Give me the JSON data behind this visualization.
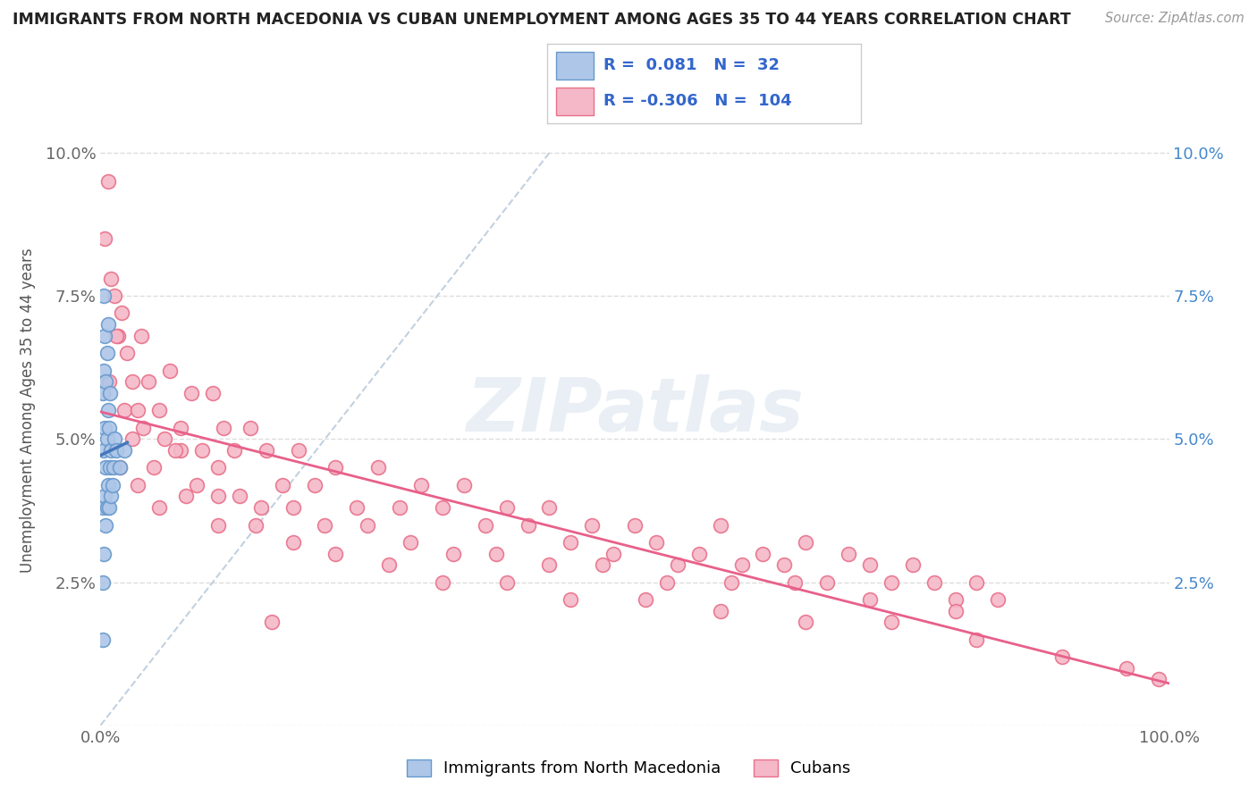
{
  "title": "IMMIGRANTS FROM NORTH MACEDONIA VS CUBAN UNEMPLOYMENT AMONG AGES 35 TO 44 YEARS CORRELATION CHART",
  "source": "Source: ZipAtlas.com",
  "ylabel": "Unemployment Among Ages 35 to 44 years",
  "legend_label1": "Immigrants from North Macedonia",
  "legend_label2": "Cubans",
  "R1": 0.081,
  "N1": 32,
  "R2": -0.306,
  "N2": 104,
  "xlim": [
    0.0,
    1.0
  ],
  "ylim": [
    0.0,
    0.11
  ],
  "yticks": [
    0.0,
    0.025,
    0.05,
    0.075,
    0.1
  ],
  "ytick_labels_left": [
    "",
    "2.5%",
    "5.0%",
    "7.5%",
    "10.0%"
  ],
  "ytick_labels_right": [
    "",
    "2.5%",
    "5.0%",
    "7.5%",
    "10.0%"
  ],
  "xticks": [
    0.0,
    1.0
  ],
  "xtick_labels": [
    "0.0%",
    "100.0%"
  ],
  "color_blue_face": "#aec6e8",
  "color_blue_edge": "#6699cc",
  "color_pink_face": "#f4b8c8",
  "color_pink_edge": "#e8708a",
  "trend_blue_color": "#4477bb",
  "trend_pink_color": "#e8608a",
  "diag_line_color": "#bbccdd",
  "watermark_text": "ZIPatlas",
  "blue_scatter_x": [
    0.002,
    0.002,
    0.002,
    0.002,
    0.003,
    0.003,
    0.003,
    0.003,
    0.004,
    0.004,
    0.004,
    0.005,
    0.005,
    0.005,
    0.006,
    0.006,
    0.006,
    0.007,
    0.007,
    0.007,
    0.008,
    0.008,
    0.009,
    0.009,
    0.01,
    0.01,
    0.011,
    0.012,
    0.013,
    0.015,
    0.018,
    0.022
  ],
  "blue_scatter_y": [
    0.015,
    0.025,
    0.038,
    0.058,
    0.03,
    0.048,
    0.062,
    0.075,
    0.04,
    0.052,
    0.068,
    0.035,
    0.045,
    0.06,
    0.038,
    0.05,
    0.065,
    0.042,
    0.055,
    0.07,
    0.038,
    0.052,
    0.045,
    0.058,
    0.04,
    0.048,
    0.042,
    0.045,
    0.05,
    0.048,
    0.045,
    0.048
  ],
  "pink_scatter_x": [
    0.004,
    0.007,
    0.01,
    0.013,
    0.016,
    0.02,
    0.025,
    0.03,
    0.038,
    0.045,
    0.055,
    0.065,
    0.075,
    0.085,
    0.095,
    0.105,
    0.115,
    0.125,
    0.14,
    0.155,
    0.17,
    0.185,
    0.2,
    0.22,
    0.24,
    0.26,
    0.28,
    0.3,
    0.32,
    0.34,
    0.36,
    0.38,
    0.4,
    0.42,
    0.44,
    0.46,
    0.48,
    0.5,
    0.52,
    0.54,
    0.56,
    0.58,
    0.6,
    0.62,
    0.64,
    0.66,
    0.68,
    0.7,
    0.72,
    0.74,
    0.76,
    0.78,
    0.8,
    0.82,
    0.84,
    0.008,
    0.015,
    0.022,
    0.03,
    0.04,
    0.05,
    0.06,
    0.075,
    0.09,
    0.11,
    0.13,
    0.15,
    0.18,
    0.21,
    0.25,
    0.29,
    0.33,
    0.37,
    0.42,
    0.47,
    0.53,
    0.59,
    0.65,
    0.72,
    0.8,
    0.018,
    0.035,
    0.055,
    0.08,
    0.11,
    0.145,
    0.18,
    0.22,
    0.27,
    0.32,
    0.38,
    0.44,
    0.51,
    0.58,
    0.66,
    0.74,
    0.82,
    0.9,
    0.96,
    0.99,
    0.035,
    0.07,
    0.11,
    0.16
  ],
  "pink_scatter_y": [
    0.085,
    0.095,
    0.078,
    0.075,
    0.068,
    0.072,
    0.065,
    0.06,
    0.068,
    0.06,
    0.055,
    0.062,
    0.052,
    0.058,
    0.048,
    0.058,
    0.052,
    0.048,
    0.052,
    0.048,
    0.042,
    0.048,
    0.042,
    0.045,
    0.038,
    0.045,
    0.038,
    0.042,
    0.038,
    0.042,
    0.035,
    0.038,
    0.035,
    0.038,
    0.032,
    0.035,
    0.03,
    0.035,
    0.032,
    0.028,
    0.03,
    0.035,
    0.028,
    0.03,
    0.028,
    0.032,
    0.025,
    0.03,
    0.028,
    0.025,
    0.028,
    0.025,
    0.022,
    0.025,
    0.022,
    0.06,
    0.068,
    0.055,
    0.05,
    0.052,
    0.045,
    0.05,
    0.048,
    0.042,
    0.045,
    0.04,
    0.038,
    0.038,
    0.035,
    0.035,
    0.032,
    0.03,
    0.03,
    0.028,
    0.028,
    0.025,
    0.025,
    0.025,
    0.022,
    0.02,
    0.045,
    0.042,
    0.038,
    0.04,
    0.035,
    0.035,
    0.032,
    0.03,
    0.028,
    0.025,
    0.025,
    0.022,
    0.022,
    0.02,
    0.018,
    0.018,
    0.015,
    0.012,
    0.01,
    0.008,
    0.055,
    0.048,
    0.04,
    0.018
  ]
}
